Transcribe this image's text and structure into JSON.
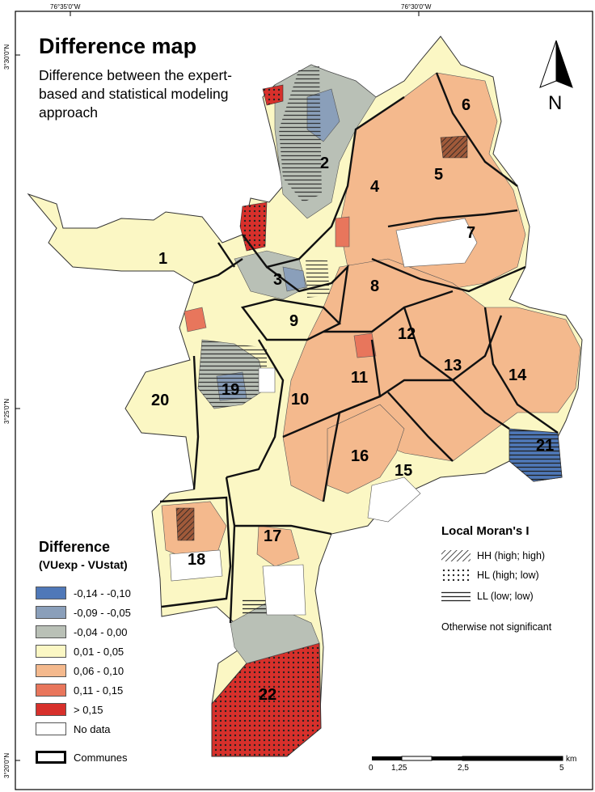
{
  "title": "Difference map",
  "subtitle": "Difference between the expert-based and statistical modeling approach",
  "graticule": {
    "top": [
      "76°35'0\"W",
      "76°30'0\"W"
    ],
    "left": [
      "3°30'0\"N",
      "3°25'0\"N",
      "3°20'0\"N"
    ]
  },
  "north_arrow": {
    "label": "N",
    "icon": "north-arrow-icon"
  },
  "legend": {
    "title": "Difference",
    "subtitle": "(VUexp - VUstat)",
    "classes": [
      {
        "label": "-0,14 - -0,10",
        "color": "#4f78b8"
      },
      {
        "label": "-0,09 - -0,05",
        "color": "#8a9fba"
      },
      {
        "label": "-0,04 - 0,00",
        "color": "#b9c0b6"
      },
      {
        "label": "0,01 - 0,05",
        "color": "#fbf7c4"
      },
      {
        "label": "0,06 - 0,10",
        "color": "#f4b98d"
      },
      {
        "label": "0,11 - 0,15",
        "color": "#e8765c"
      },
      {
        "label": "> 0,15",
        "color": "#d7302b"
      },
      {
        "label": "No data",
        "color": "#ffffff"
      }
    ],
    "communes_label": "Communes"
  },
  "moran": {
    "title": "Local Moran's I",
    "items": [
      {
        "label": "HH (high; high)",
        "pattern": "diagonal-hatch"
      },
      {
        "label": "HL (high; low)",
        "pattern": "dots"
      },
      {
        "label": "LL (low; low)",
        "pattern": "horizontal-lines"
      }
    ],
    "otherwise": "Otherwise not significant"
  },
  "scale_bar": {
    "labels": [
      "0",
      "1,25",
      "2,5",
      "5"
    ],
    "unit": "km"
  },
  "communes": [
    {
      "id": "1",
      "label": "1"
    },
    {
      "id": "2",
      "label": "2"
    },
    {
      "id": "3",
      "label": "3"
    },
    {
      "id": "4",
      "label": "4"
    },
    {
      "id": "5",
      "label": "5"
    },
    {
      "id": "6",
      "label": "6"
    },
    {
      "id": "7",
      "label": "7"
    },
    {
      "id": "8",
      "label": "8"
    },
    {
      "id": "9",
      "label": "9"
    },
    {
      "id": "10",
      "label": "10"
    },
    {
      "id": "11",
      "label": "11"
    },
    {
      "id": "12",
      "label": "12"
    },
    {
      "id": "13",
      "label": "13"
    },
    {
      "id": "14",
      "label": "14"
    },
    {
      "id": "15",
      "label": "15"
    },
    {
      "id": "16",
      "label": "16"
    },
    {
      "id": "17",
      "label": "17"
    },
    {
      "id": "18",
      "label": "18"
    },
    {
      "id": "19",
      "label": "19"
    },
    {
      "id": "20",
      "label": "20"
    },
    {
      "id": "21",
      "label": "21"
    },
    {
      "id": "22",
      "label": "22"
    }
  ]
}
